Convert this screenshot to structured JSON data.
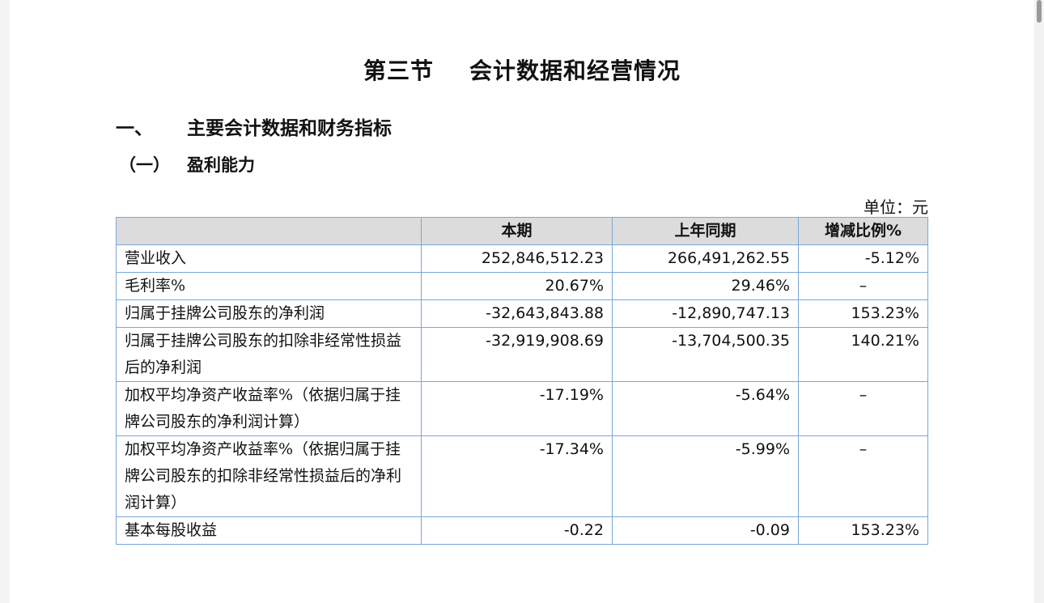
{
  "section_title": {
    "num": "第三节",
    "text": "会计数据和经营情况"
  },
  "heading1": {
    "num": "一、",
    "text": "主要会计数据和财务指标"
  },
  "heading2": {
    "num": "（一）",
    "text": "盈利能力"
  },
  "unit_label": "单位：元",
  "table": {
    "headers": [
      "",
      "本期",
      "上年同期",
      "增减比例%"
    ],
    "rows": [
      {
        "label": "营业收入",
        "current": "252,846,512.23",
        "previous": "266,491,262.55",
        "change": "-5.12%"
      },
      {
        "label": "毛利率%",
        "current": "20.67%",
        "previous": "29.46%",
        "change": "–"
      },
      {
        "label": "归属于挂牌公司股东的净利润",
        "current": "-32,643,843.88",
        "previous": "-12,890,747.13",
        "change": "153.23%"
      },
      {
        "label": "归属于挂牌公司股东的扣除非经常性损益后的净利润",
        "current": "-32,919,908.69",
        "previous": "-13,704,500.35",
        "change": "140.21%"
      },
      {
        "label": "加权平均净资产收益率%（依据归属于挂牌公司股东的净利润计算）",
        "current": "-17.19%",
        "previous": "-5.64%",
        "change": "–"
      },
      {
        "label": "加权平均净资产收益率%（依据归属于挂牌公司股东的扣除非经常性损益后的净利润计算）",
        "current": "-17.34%",
        "previous": "-5.99%",
        "change": "–"
      },
      {
        "label": "基本每股收益",
        "current": "-0.22",
        "previous": "-0.09",
        "change": "153.23%"
      }
    ]
  }
}
